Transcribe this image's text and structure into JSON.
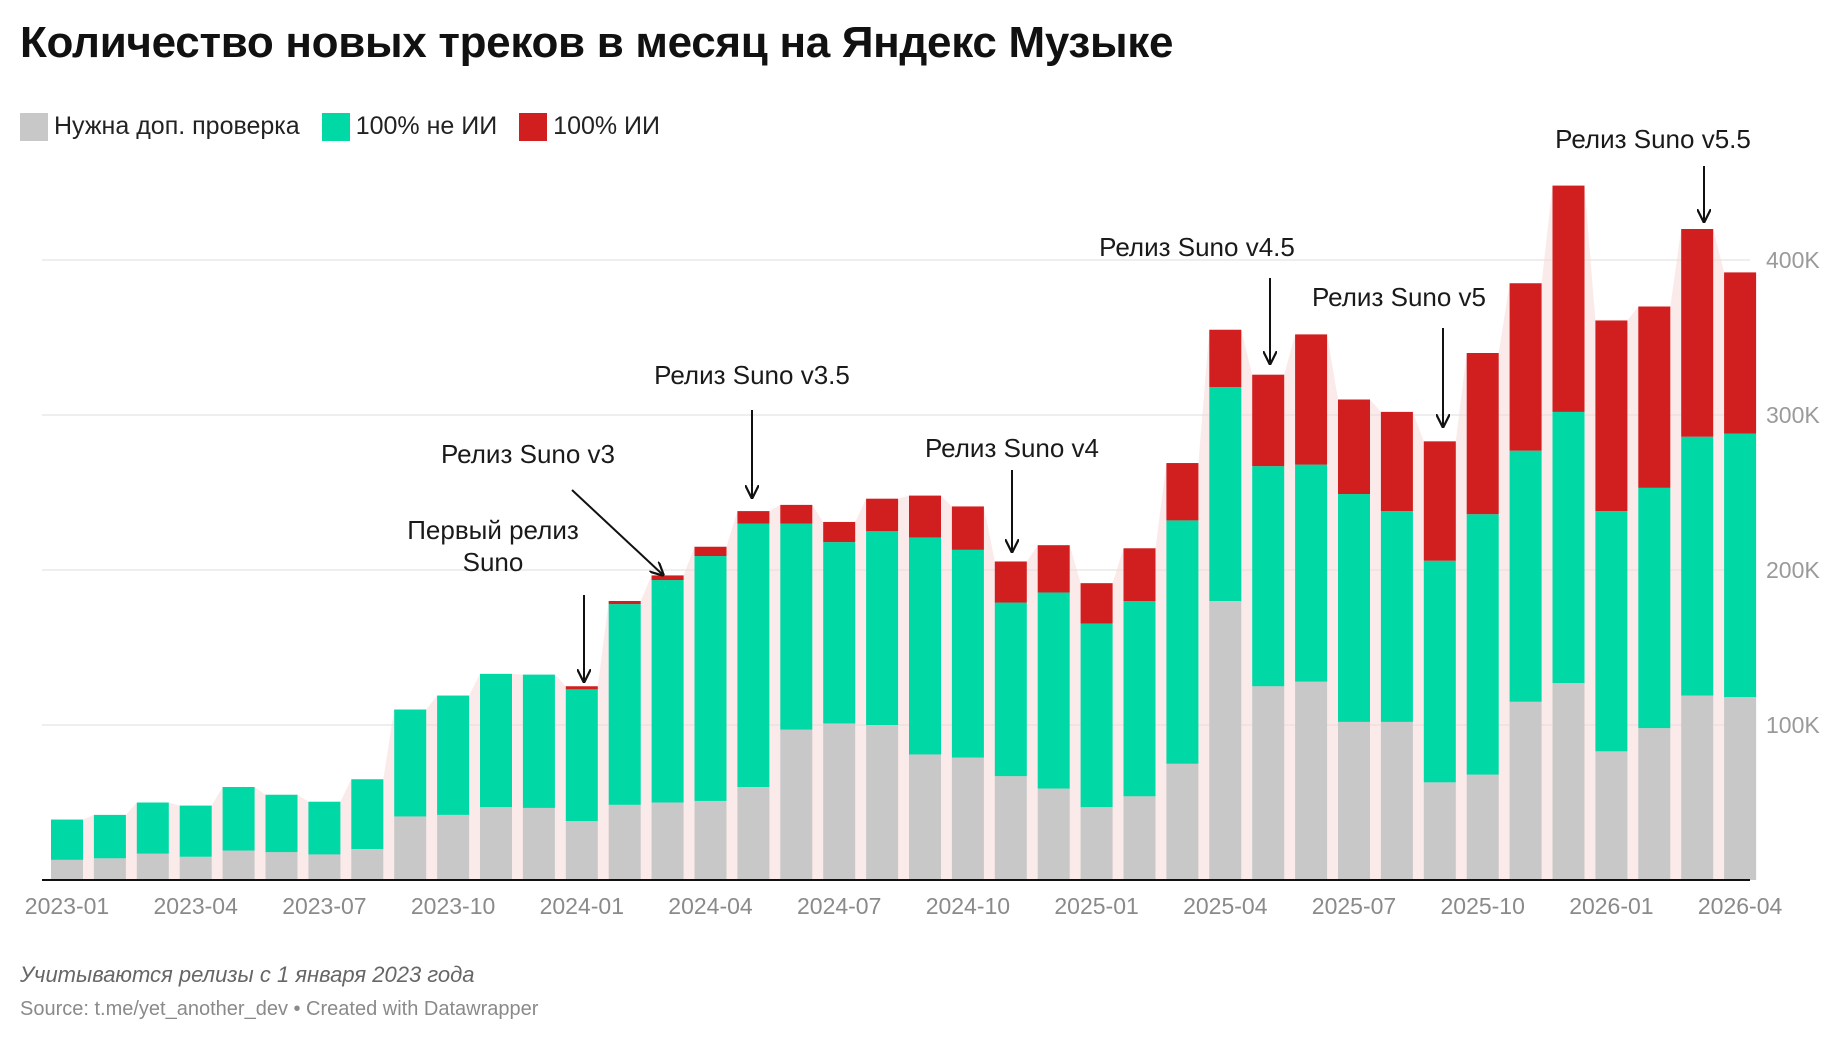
{
  "title": "Количество новых треков в месяц на Яндекс Музыке",
  "legend": [
    {
      "label": "Нужна доп. проверка",
      "color": "#c8c8c8"
    },
    {
      "label": "100% не ИИ",
      "color": "#00d9a6"
    },
    {
      "label": "100% ИИ",
      "color": "#d11f1f"
    }
  ],
  "note": "Учитываются релизы с 1 января 2023 года",
  "source": "Source: t.me/yet_another_dev • Created with Datawrapper",
  "chart_data": {
    "type": "bar",
    "stacked": true,
    "ylim": [
      0,
      450000
    ],
    "y_ticks": [
      {
        "value": 100000,
        "label": "100K"
      },
      {
        "value": 200000,
        "label": "200K"
      },
      {
        "value": 300000,
        "label": "300K"
      },
      {
        "value": 400000,
        "label": "400K"
      }
    ],
    "grid": true,
    "legend_position": "top-left",
    "categories": [
      "2023-01",
      "2023-02",
      "2023-03",
      "2023-04",
      "2023-05",
      "2023-06",
      "2023-07",
      "2023-08",
      "2023-09",
      "2023-10",
      "2023-11",
      "2023-12",
      "2024-01",
      "2024-02",
      "2024-03",
      "2024-04",
      "2024-05",
      "2024-06",
      "2024-07",
      "2024-08",
      "2024-09",
      "2024-10",
      "2024-11",
      "2024-12",
      "2025-01",
      "2025-02",
      "2025-03",
      "2025-04",
      "2025-05",
      "2025-06",
      "2025-07",
      "2025-08",
      "2025-09",
      "2025-10",
      "2025-11",
      "2025-12",
      "2026-01",
      "2026-02",
      "2026-03",
      "2026-04"
    ],
    "x_tick_labels": [
      {
        "index": 0,
        "label": "2023-01"
      },
      {
        "index": 3,
        "label": "2023-04"
      },
      {
        "index": 6,
        "label": "2023-07"
      },
      {
        "index": 9,
        "label": "2023-10"
      },
      {
        "index": 12,
        "label": "2024-01"
      },
      {
        "index": 15,
        "label": "2024-04"
      },
      {
        "index": 18,
        "label": "2024-07"
      },
      {
        "index": 21,
        "label": "2024-10"
      },
      {
        "index": 24,
        "label": "2025-01"
      },
      {
        "index": 27,
        "label": "2025-04"
      },
      {
        "index": 30,
        "label": "2025-07"
      },
      {
        "index": 33,
        "label": "2025-10"
      },
      {
        "index": 36,
        "label": "2026-01"
      },
      {
        "index": 39,
        "label": "2026-04"
      }
    ],
    "series": [
      {
        "name": "Нужна доп. проверка",
        "color": "#c8c8c8",
        "values": [
          13000,
          14000,
          17000,
          15000,
          19000,
          18000,
          16500,
          20000,
          41000,
          42000,
          47000,
          46500,
          38000,
          48500,
          50000,
          51000,
          60000,
          97000,
          101000,
          100000,
          81000,
          79000,
          67000,
          59000,
          47000,
          54000,
          75000,
          180000,
          125000,
          128000,
          102000,
          102000,
          63000,
          68000,
          115000,
          127000,
          83000,
          98000,
          119000,
          118000
        ]
      },
      {
        "name": "100% не ИИ",
        "color": "#00d9a6",
        "values": [
          26000,
          28000,
          33000,
          33000,
          41000,
          37000,
          34000,
          45000,
          69000,
          77000,
          86000,
          86000,
          85000,
          129500,
          143500,
          158000,
          170000,
          133000,
          117000,
          125000,
          140000,
          134000,
          112000,
          126500,
          118500,
          126000,
          157000,
          138000,
          142000,
          140000,
          147000,
          136000,
          143000,
          168000,
          162000,
          175000,
          155000,
          155000,
          167000,
          170000
        ]
      },
      {
        "name": "100% ИИ",
        "color": "#d11f1f",
        "values": [
          0,
          0,
          0,
          0,
          0,
          0,
          0,
          0,
          0,
          0,
          0,
          0,
          2000,
          2000,
          3000,
          6000,
          8000,
          12000,
          13000,
          21000,
          27000,
          28000,
          26500,
          30500,
          26000,
          34000,
          37000,
          37000,
          59000,
          84000,
          61000,
          64000,
          77000,
          104000,
          108000,
          146000,
          123000,
          117000,
          134000,
          104000
        ]
      }
    ],
    "annotations": [
      {
        "text_lines": [
          "Первый релиз",
          "Suno"
        ],
        "index": 12
      },
      {
        "text_lines": [
          "Релиз Suno v3"
        ],
        "index": 14
      },
      {
        "text_lines": [
          "Релиз Suno v3.5"
        ],
        "index": 16
      },
      {
        "text_lines": [
          "Релиз Suno v4"
        ],
        "index": 22
      },
      {
        "text_lines": [
          "Релиз Suno v4.5"
        ],
        "index": 28
      },
      {
        "text_lines": [
          "Релиз Suno v5"
        ],
        "index": 32
      },
      {
        "text_lines": [
          "Релиз Suno v5.5"
        ],
        "index": 38
      }
    ]
  }
}
